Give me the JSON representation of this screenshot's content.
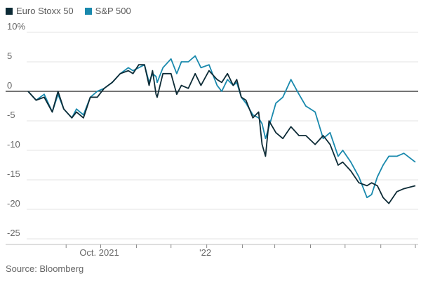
{
  "chart_data": {
    "type": "line",
    "title": "",
    "xlabel": "",
    "ylabel": "",
    "ylim": [
      -25,
      10
    ],
    "y_ticks": [
      {
        "value": 10,
        "label": "10%"
      },
      {
        "value": 5,
        "label": "5"
      },
      {
        "value": 0,
        "label": "0"
      },
      {
        "value": -5,
        "label": "-5"
      },
      {
        "value": -10,
        "label": "-10"
      },
      {
        "value": -15,
        "label": "-15"
      },
      {
        "value": -20,
        "label": "-20"
      },
      {
        "value": -25,
        "label": "-25"
      }
    ],
    "grid": "horizontal",
    "x_range": [
      "2021-08-13",
      "2022-07-15"
    ],
    "x_ticks": [
      {
        "date": "2021-09-15",
        "label": ""
      },
      {
        "date": "2021-10-15",
        "label": "Oct. 2021"
      },
      {
        "date": "2021-11-15",
        "label": ""
      },
      {
        "date": "2021-12-15",
        "label": ""
      },
      {
        "date": "2022-01-15",
        "label": "'22"
      },
      {
        "date": "2022-02-15",
        "label": ""
      },
      {
        "date": "2022-03-15",
        "label": ""
      },
      {
        "date": "2022-04-15",
        "label": ""
      },
      {
        "date": "2022-05-15",
        "label": ""
      },
      {
        "date": "2022-06-15",
        "label": ""
      },
      {
        "date": "2022-07-15",
        "label": ""
      }
    ],
    "legend_position": "top-left",
    "series": [
      {
        "name": "Euro Stoxx 50",
        "color": "#0d2b36",
        "points": [
          [
            "2021-08-13",
            0
          ],
          [
            "2021-08-20",
            -1.5
          ],
          [
            "2021-08-27",
            -1
          ],
          [
            "2021-09-03",
            -3.5
          ],
          [
            "2021-09-08",
            0
          ],
          [
            "2021-09-13",
            -3
          ],
          [
            "2021-09-20",
            -4.5
          ],
          [
            "2021-09-24",
            -3.5
          ],
          [
            "2021-09-30",
            -4.5
          ],
          [
            "2021-10-06",
            -1
          ],
          [
            "2021-10-12",
            -1
          ],
          [
            "2021-10-18",
            0.5
          ],
          [
            "2021-10-25",
            1.5
          ],
          [
            "2021-11-01",
            3
          ],
          [
            "2021-11-08",
            3.5
          ],
          [
            "2021-11-12",
            3
          ],
          [
            "2021-11-17",
            4.5
          ],
          [
            "2021-11-22",
            4.5
          ],
          [
            "2021-11-26",
            1
          ],
          [
            "2021-11-29",
            3.5
          ],
          [
            "2021-12-02",
            -0.5
          ],
          [
            "2021-12-03",
            -1
          ],
          [
            "2021-12-08",
            3
          ],
          [
            "2021-12-15",
            3
          ],
          [
            "2021-12-20",
            -0.5
          ],
          [
            "2021-12-24",
            1
          ],
          [
            "2021-12-30",
            0.5
          ],
          [
            "2022-01-05",
            3
          ],
          [
            "2022-01-10",
            1
          ],
          [
            "2022-01-17",
            3.5
          ],
          [
            "2022-01-24",
            2
          ],
          [
            "2022-01-28",
            1.5
          ],
          [
            "2022-02-02",
            3
          ],
          [
            "2022-02-07",
            1
          ],
          [
            "2022-02-10",
            2
          ],
          [
            "2022-02-14",
            -1
          ],
          [
            "2022-02-18",
            -1.5
          ],
          [
            "2022-02-24",
            -4.5
          ],
          [
            "2022-03-01",
            -3.5
          ],
          [
            "2022-03-04",
            -9
          ],
          [
            "2022-03-07",
            -11
          ],
          [
            "2022-03-10",
            -5
          ],
          [
            "2022-03-16",
            -7
          ],
          [
            "2022-03-22",
            -8
          ],
          [
            "2022-03-29",
            -6
          ],
          [
            "2022-04-05",
            -7.5
          ],
          [
            "2022-04-11",
            -7.5
          ],
          [
            "2022-04-19",
            -9
          ],
          [
            "2022-04-26",
            -7.5
          ],
          [
            "2022-05-02",
            -9
          ],
          [
            "2022-05-09",
            -12.5
          ],
          [
            "2022-05-13",
            -12
          ],
          [
            "2022-05-20",
            -13.5
          ],
          [
            "2022-05-27",
            -15.5
          ],
          [
            "2022-06-03",
            -16
          ],
          [
            "2022-06-07",
            -15.5
          ],
          [
            "2022-06-12",
            -16
          ],
          [
            "2022-06-17",
            -18
          ],
          [
            "2022-06-22",
            -19
          ],
          [
            "2022-06-29",
            -17
          ],
          [
            "2022-07-05",
            -16.5
          ],
          [
            "2022-07-15",
            -16
          ]
        ]
      },
      {
        "name": "S&P 500",
        "color": "#1989ad",
        "points": [
          [
            "2021-08-13",
            0
          ],
          [
            "2021-08-20",
            -1.5
          ],
          [
            "2021-08-27",
            -0.5
          ],
          [
            "2021-09-03",
            -3.5
          ],
          [
            "2021-09-08",
            -0.5
          ],
          [
            "2021-09-13",
            -3
          ],
          [
            "2021-09-20",
            -4.5
          ],
          [
            "2021-09-24",
            -3
          ],
          [
            "2021-09-30",
            -4
          ],
          [
            "2021-10-06",
            -1
          ],
          [
            "2021-10-12",
            0
          ],
          [
            "2021-10-18",
            0.5
          ],
          [
            "2021-10-25",
            1.5
          ],
          [
            "2021-11-01",
            3
          ],
          [
            "2021-11-08",
            4
          ],
          [
            "2021-11-12",
            3.5
          ],
          [
            "2021-11-17",
            4
          ],
          [
            "2021-11-22",
            4.5
          ],
          [
            "2021-11-26",
            1.5
          ],
          [
            "2021-11-29",
            3
          ],
          [
            "2021-12-02",
            2.5
          ],
          [
            "2021-12-03",
            1.5
          ],
          [
            "2021-12-08",
            4
          ],
          [
            "2021-12-15",
            5.5
          ],
          [
            "2021-12-20",
            3
          ],
          [
            "2021-12-24",
            5
          ],
          [
            "2021-12-30",
            5
          ],
          [
            "2022-01-05",
            6
          ],
          [
            "2022-01-10",
            4
          ],
          [
            "2022-01-17",
            4.5
          ],
          [
            "2022-01-24",
            1
          ],
          [
            "2022-01-28",
            0
          ],
          [
            "2022-02-02",
            2
          ],
          [
            "2022-02-07",
            1
          ],
          [
            "2022-02-10",
            1.5
          ],
          [
            "2022-02-14",
            -1
          ],
          [
            "2022-02-18",
            -2
          ],
          [
            "2022-02-24",
            -4
          ],
          [
            "2022-03-01",
            -4.5
          ],
          [
            "2022-03-04",
            -5.5
          ],
          [
            "2022-03-07",
            -8
          ],
          [
            "2022-03-10",
            -6
          ],
          [
            "2022-03-16",
            -2
          ],
          [
            "2022-03-22",
            -1
          ],
          [
            "2022-03-29",
            2
          ],
          [
            "2022-04-05",
            -0.5
          ],
          [
            "2022-04-11",
            -2.5
          ],
          [
            "2022-04-19",
            -3.5
          ],
          [
            "2022-04-26",
            -8
          ],
          [
            "2022-05-02",
            -7
          ],
          [
            "2022-05-09",
            -11
          ],
          [
            "2022-05-13",
            -10
          ],
          [
            "2022-05-20",
            -12
          ],
          [
            "2022-05-27",
            -14.5
          ],
          [
            "2022-06-03",
            -18
          ],
          [
            "2022-06-07",
            -17.5
          ],
          [
            "2022-06-12",
            -14.5
          ],
          [
            "2022-06-17",
            -12.5
          ],
          [
            "2022-06-22",
            -11
          ],
          [
            "2022-06-29",
            -11
          ],
          [
            "2022-07-05",
            -10.5
          ],
          [
            "2022-07-15",
            -12
          ]
        ]
      }
    ]
  },
  "source_text": "Source: Bloomberg"
}
